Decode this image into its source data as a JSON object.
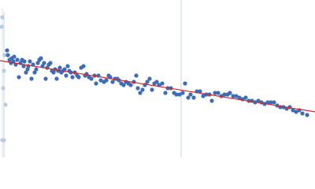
{
  "chart_data": {
    "type": "scatter",
    "xlim": [
      0,
      400
    ],
    "ylim": [
      200,
      0
    ],
    "series": [
      {
        "color": "#3f6db5",
        "x": [
          9,
          10,
          12,
          14,
          15,
          17,
          18,
          20,
          22,
          24,
          26,
          28,
          30,
          31,
          33,
          35,
          36,
          38,
          40,
          42,
          44,
          46,
          48,
          50,
          52,
          54,
          56,
          58,
          60,
          62,
          64,
          66,
          68,
          70,
          72,
          74,
          76,
          78,
          80,
          82,
          84,
          86,
          88,
          90,
          92,
          95,
          98,
          100,
          103,
          106,
          108,
          110,
          113,
          116,
          120,
          122,
          125,
          128,
          132,
          135,
          138,
          140,
          143,
          146,
          149,
          151,
          154,
          157,
          160,
          163,
          166,
          170,
          173,
          175,
          178,
          181,
          184,
          187,
          190,
          193,
          196,
          199,
          202,
          206,
          210,
          213,
          217,
          221,
          224,
          228,
          232,
          235,
          239,
          242,
          246,
          250,
          254,
          258,
          262,
          266,
          269,
          273,
          277,
          281,
          285,
          289,
          292,
          296,
          300,
          304,
          308,
          312,
          316,
          320,
          324,
          328,
          332,
          336,
          340,
          344,
          348,
          352,
          356,
          360,
          364,
          368,
          372,
          376,
          380,
          384,
          390
        ],
        "y": [
          64,
          70,
          76,
          80,
          74,
          78,
          72,
          82,
          76,
          98,
          80,
          76,
          84,
          78,
          92,
          88,
          84,
          78,
          100,
          82,
          92,
          88,
          80,
          76,
          74,
          84,
          80,
          100,
          86,
          82,
          80,
          90,
          92,
          88,
          100,
          90,
          86,
          92,
          90,
          88,
          96,
          84,
          90,
          92,
          98,
          92,
          96,
          98,
          86,
          84,
          96,
          94,
          98,
          100,
          96,
          106,
          96,
          102,
          104,
          102,
          96,
          98,
          104,
          100,
          100,
          102,
          106,
          108,
          104,
          106,
          108,
          104,
          96,
          112,
          118,
          114,
          108,
          104,
          100,
          114,
          106,
          104,
          108,
          106,
          118,
          112,
          112,
          118,
          120,
          120,
          118,
          106,
          124,
          120,
          124,
          116,
          116,
          122,
          120,
          120,
          128,
          118,
          118,
          122,
          120,
          120,
          118,
          122,
          122,
          124,
          126,
          124,
          128,
          128,
          130,
          128,
          130,
          132,
          130,
          130,
          130,
          134,
          136,
          136,
          138,
          136,
          140,
          142,
          140,
          144,
          146
        ]
      },
      {
        "color": "#b8cbe6",
        "x": [
          3,
          2,
          6,
          5,
          4,
          7,
          3,
          5
        ],
        "y": [
          22,
          34,
          70,
          90,
          112,
          133,
          178,
          178
        ]
      }
    ],
    "fit": {
      "color": "#d62728",
      "x": [
        0,
        400
      ],
      "y": [
        77,
        142
      ]
    },
    "vline": {
      "color": "#c8d4e4",
      "x": 230
    }
  }
}
